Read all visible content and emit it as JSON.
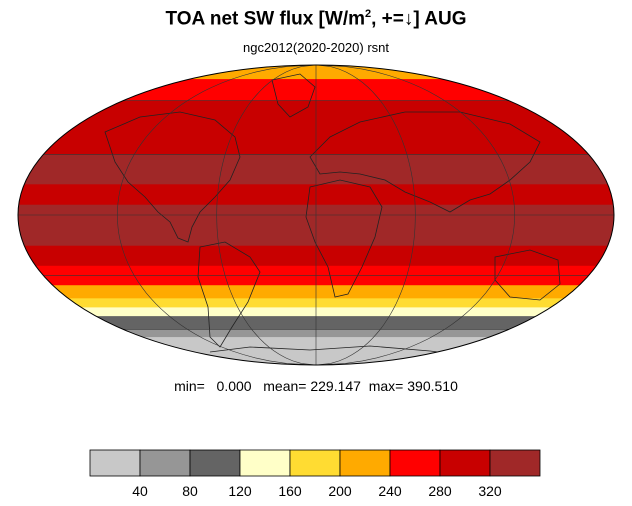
{
  "title": {
    "main": "TOA net SW flux [W/m",
    "sup": "2",
    "rest": ", +=↓]  AUG"
  },
  "subtitle": "ngc2012(2020-2020)   rsnt",
  "stats": {
    "min_label": "min=",
    "min_value": "0.000",
    "mean_label": "mean=",
    "mean_value": "229.147",
    "max_label": "max=",
    "max_value": "390.510"
  },
  "colorbar": {
    "colors": [
      "#c8c8c8",
      "#969696",
      "#646464",
      "#ffffc8",
      "#ffdc32",
      "#ffaa00",
      "#ff0000",
      "#c80000",
      "#a02828"
    ],
    "ticks": [
      "40",
      "80",
      "120",
      "160",
      "200",
      "240",
      "280",
      "320"
    ]
  },
  "map": {
    "projection": "mollweide",
    "month": "AUG",
    "lat_bands": [
      {
        "lat_min": 75,
        "lat_max": 90,
        "level": 5
      },
      {
        "lat_min": 60,
        "lat_max": 75,
        "level": 6
      },
      {
        "lat_min": 45,
        "lat_max": 60,
        "level": 7
      },
      {
        "lat_min": 30,
        "lat_max": 45,
        "level": 7
      },
      {
        "lat_min": 15,
        "lat_max": 30,
        "level": 8
      },
      {
        "lat_min": 5,
        "lat_max": 15,
        "level": 7
      },
      {
        "lat_min": -15,
        "lat_max": 5,
        "level": 8
      },
      {
        "lat_min": -25,
        "lat_max": -15,
        "level": 7
      },
      {
        "lat_min": -35,
        "lat_max": -25,
        "level": 6
      },
      {
        "lat_min": -42,
        "lat_max": -35,
        "level": 5
      },
      {
        "lat_min": -47,
        "lat_max": -42,
        "level": 4
      },
      {
        "lat_min": -52,
        "lat_max": -47,
        "level": 3
      },
      {
        "lat_min": -60,
        "lat_max": -52,
        "level": 2
      },
      {
        "lat_min": -65,
        "lat_max": -60,
        "level": 1
      },
      {
        "lat_min": -90,
        "lat_max": -65,
        "level": 0
      }
    ],
    "graticule_lats": [
      -60,
      -30,
      0,
      30,
      60
    ],
    "graticule_lons": [
      -120,
      -60,
      0,
      60,
      120
    ]
  }
}
